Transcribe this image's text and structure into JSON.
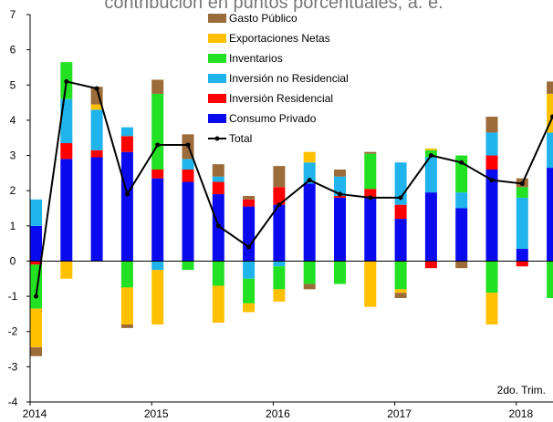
{
  "chart_data": {
    "type": "bar",
    "stacked": true,
    "title": "contribución en puntos porcentuales, a. e.",
    "annotation": "2do. Trim.",
    "categories": [
      "2014",
      null,
      null,
      null,
      "2015",
      null,
      null,
      null,
      "2016",
      null,
      null,
      null,
      "2017",
      null,
      null,
      null,
      "2018",
      null
    ],
    "ylim": [
      -4,
      7
    ],
    "yticks": [
      -4,
      -3,
      -2,
      -1,
      0,
      1,
      2,
      3,
      4,
      5,
      6,
      7
    ],
    "grid": false,
    "series": [
      {
        "name": "Consumo Privado",
        "color": "#0a0aee",
        "values": [
          1.0,
          2.9,
          2.95,
          3.1,
          2.35,
          2.25,
          1.9,
          1.55,
          1.6,
          2.2,
          1.8,
          1.8,
          1.2,
          1.95,
          1.5,
          2.6,
          0.35,
          2.65
        ]
      },
      {
        "name": "Inversión Residencial",
        "color": "#ff0000",
        "values": [
          -0.1,
          0.45,
          0.2,
          0.45,
          0.25,
          0.35,
          0.35,
          0.2,
          0.5,
          0,
          0.05,
          0.25,
          0.4,
          -0.2,
          0,
          0.4,
          -0.15,
          0
        ]
      },
      {
        "name": "Inversión no Residencial",
        "color": "#1fb4ec",
        "values": [
          0.75,
          1.25,
          1.15,
          0.25,
          -0.25,
          0.3,
          0.15,
          -0.5,
          -0.15,
          0.6,
          0.55,
          0,
          1.2,
          1.0,
          0.45,
          0.65,
          1.45,
          1.0
        ]
      },
      {
        "name": "Inventarios",
        "color": "#22e022",
        "values": [
          -1.25,
          1.05,
          0,
          -0.75,
          2.15,
          -0.25,
          -0.7,
          -0.7,
          -0.65,
          -0.65,
          -0.65,
          1.0,
          -0.8,
          0.2,
          1.05,
          -0.9,
          0.3,
          -1.05
        ]
      },
      {
        "name": "Exportaciones Netas",
        "color": "#ffc000",
        "values": [
          -1.1,
          -0.5,
          0.15,
          -1.05,
          -1.55,
          0,
          -1.05,
          -0.25,
          -0.35,
          0.3,
          0,
          -1.3,
          -0.1,
          0.05,
          0,
          -0.9,
          0,
          1.1
        ]
      },
      {
        "name": "Gasto Público",
        "color": "#9c6b3a",
        "values": [
          -0.25,
          0,
          0.5,
          -0.1,
          0.4,
          0.7,
          0.35,
          0.1,
          0.6,
          -0.15,
          0.2,
          0.05,
          -0.15,
          0,
          -0.2,
          0.45,
          0.25,
          0.35
        ]
      },
      {
        "name": "Total",
        "type": "line",
        "color": "#000000",
        "values": [
          -1.0,
          5.1,
          4.9,
          1.9,
          3.3,
          3.3,
          1.0,
          0.4,
          1.6,
          2.3,
          1.9,
          1.8,
          1.8,
          3.0,
          2.8,
          2.3,
          2.2,
          4.1
        ]
      }
    ]
  }
}
